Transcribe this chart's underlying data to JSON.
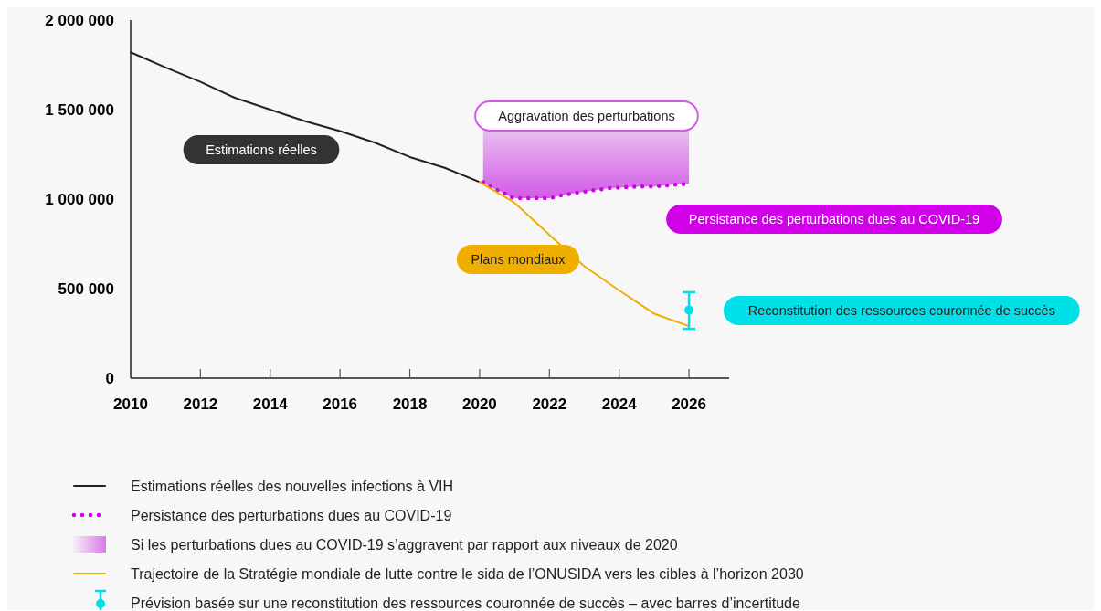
{
  "chart_data": {
    "type": "line",
    "xlim": [
      2010,
      2027.15
    ],
    "xticks": [
      2010,
      2012,
      2014,
      2016,
      2018,
      2020,
      2022,
      2024,
      2026
    ],
    "ylim": [
      0,
      2000000
    ],
    "yticks": [
      {
        "value": 0,
        "label": "0"
      },
      {
        "value": 500000,
        "label": "500 000"
      },
      {
        "value": 1000000,
        "label": "1 000 000"
      },
      {
        "value": 1500000,
        "label": "1 500 000"
      },
      {
        "value": 2000000,
        "label": "2 000 000"
      }
    ],
    "grid": false,
    "legend": "bottom",
    "series": [
      {
        "name": "Estimations réelles des nouvelles infections à VIH",
        "color": "#222222",
        "line_style": "solid",
        "x": [
          2010,
          2011,
          2012,
          2013,
          2014,
          2015,
          2016,
          2017,
          2018,
          2019,
          2020
        ],
        "values": [
          1820000,
          1735000,
          1655000,
          1565000,
          1500000,
          1435000,
          1380000,
          1315000,
          1235000,
          1175000,
          1095000
        ]
      },
      {
        "name": "Persistance des perturbations dues au COVID-19",
        "color": "#d000e8",
        "line_style": "dotted",
        "x": [
          2020.1,
          2020.25,
          2020.4,
          2020.57,
          2020.73,
          2020.88,
          2021.06,
          2021.24,
          2021.47,
          2021.72,
          2022.0,
          2022.33,
          2022.62,
          2022.94,
          2023.29,
          2023.67,
          2024.09,
          2024.53,
          2025.02,
          2025.52,
          2026.0
        ],
        "values": [
          1095000,
          1075000,
          1060000,
          1045000,
          1030000,
          1010000,
          1005000,
          1005000,
          1005000,
          1005000,
          1005000,
          1020000,
          1030000,
          1040000,
          1050000,
          1060000,
          1065000,
          1070000,
          1070000,
          1080000,
          1085000
        ]
      },
      {
        "name": "Si les perturbations dues au COVID-19 s’aggravent par rapport aux niveaux de 2020",
        "type": "area",
        "color": "#d25ae6",
        "x": [
          2020.1,
          2020.25,
          2020.4,
          2020.57,
          2020.73,
          2020.88,
          2021.06,
          2021.24,
          2021.47,
          2021.72,
          2022.0,
          2022.33,
          2022.62,
          2022.94,
          2023.29,
          2023.67,
          2024.09,
          2024.53,
          2025.02,
          2025.52,
          2026.0
        ],
        "values": [
          1560000,
          1560000,
          1560000,
          1560000,
          1560000,
          1560000,
          1560000,
          1560000,
          1560000,
          1560000,
          1560000,
          1560000,
          1560000,
          1560000,
          1560000,
          1560000,
          1560000,
          1560000,
          1560000,
          1560000,
          1560000
        ]
      },
      {
        "name": "Trajectoire de la Stratégie mondiale de lutte contre le sida de l’ONUSIDA vers les cibles à l’horizon 2030",
        "color": "#f0ae00",
        "line_style": "solid",
        "x": [
          2020,
          2021,
          2022,
          2023,
          2024,
          2025,
          2026
        ],
        "values": [
          1095000,
          980000,
          800000,
          625000,
          490000,
          360000,
          290000
        ]
      },
      {
        "name": "Prévision basée sur une reconstitution des ressources couronnée de succès – avec barres d’incertitude",
        "type": "scatter",
        "marker": "circle",
        "color": "#00e0e8",
        "x": [
          2026
        ],
        "values": [
          380000
        ],
        "errors": [
          [
            275000,
            480000
          ]
        ]
      }
    ],
    "annotations": [
      "Estimations réelles",
      "Persistance des perturbations dues au COVID-19",
      "Aggravation des perturbations",
      "Plans mondiaux",
      "Reconstitution des ressources couronnée de succès"
    ]
  }
}
